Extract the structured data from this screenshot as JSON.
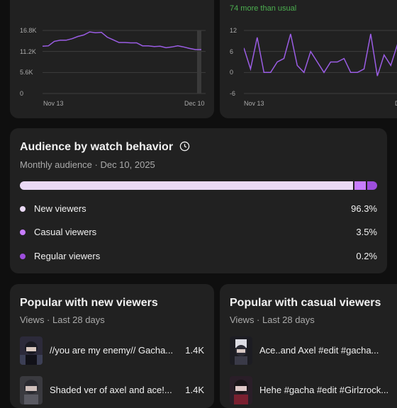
{
  "chart_left": {
    "type": "line",
    "y_ticks": [
      "16.8K",
      "11.2K",
      "5.6K",
      "0"
    ],
    "x_labels": [
      "Nov 13",
      "Dec 10"
    ],
    "color": "#9b5de5",
    "ylim": [
      0,
      16800
    ],
    "values": [
      12600,
      12700,
      13900,
      14200,
      14200,
      14600,
      15200,
      15600,
      16400,
      16200,
      16300,
      15000,
      14300,
      13600,
      13600,
      13500,
      13500,
      12700,
      12700,
      12500,
      12600,
      12200,
      12400,
      12700,
      12400,
      12000,
      11700,
      11700
    ]
  },
  "chart_right": {
    "type": "line",
    "subtitle": "74 more than usual",
    "y_ticks": [
      "12",
      "6",
      "0",
      "-6"
    ],
    "x_labels": [
      "Nov 13",
      "D"
    ],
    "color": "#9b5de5",
    "ylim": [
      -6,
      12
    ],
    "values": [
      7,
      1,
      10,
      0,
      0,
      3,
      4,
      11,
      2,
      0,
      6,
      3,
      0,
      3,
      3,
      4,
      0,
      0,
      1,
      11,
      -1,
      5,
      2,
      8,
      1
    ]
  },
  "audience": {
    "title": "Audience by watch behavior",
    "subtitle": "Monthly audience · Dec 10, 2025",
    "segments": [
      {
        "label": "New viewers",
        "value": "96.3%",
        "pct": 96.3,
        "color": "#ead9f5"
      },
      {
        "label": "Casual viewers",
        "value": "3.5%",
        "pct": 3.5,
        "color": "#c77dff"
      },
      {
        "label": "Regular viewers",
        "value": "0.2%",
        "pct": 0.2,
        "color": "#9d4edd"
      }
    ]
  },
  "popular_new": {
    "title": "Popular with new viewers",
    "subtitle": "Views · Last 28 days",
    "items": [
      {
        "title": "//you are my enemy// Gacha...",
        "views": "1.4K"
      },
      {
        "title": "Shaded ver of axel and ace!...",
        "views": "1.4K"
      }
    ]
  },
  "popular_casual": {
    "title": "Popular with casual viewers",
    "subtitle": "Views · Last 28 days",
    "items": [
      {
        "title": "Ace..and Axel #edit #gacha...",
        "views": ""
      },
      {
        "title": "Hehe #gacha #edit #Girlzrock...",
        "views": ""
      }
    ]
  }
}
